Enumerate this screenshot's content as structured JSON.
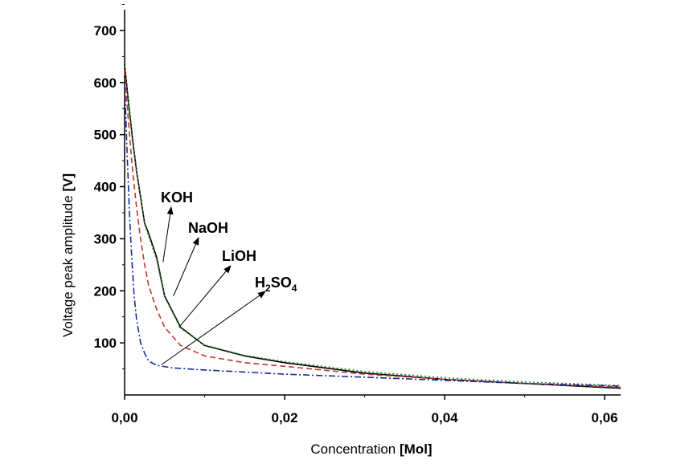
{
  "chart_data": {
    "type": "line",
    "title": "",
    "xlabel_prefix": "Concentration ",
    "xlabel_unit": "[Mol]",
    "ylabel_prefix": "Voltage peak amplitude ",
    "ylabel_unit": "[V]",
    "xlim": [
      0,
      0.062
    ],
    "ylim": [
      0,
      740
    ],
    "x_ticks": [
      0,
      0.02,
      0.04,
      0.06
    ],
    "x_tick_labels": [
      "0,00",
      "0,02",
      "0,04",
      "0,06"
    ],
    "y_ticks": [
      100,
      200,
      300,
      400,
      500,
      600,
      700
    ],
    "y_tick_labels": [
      "100",
      "200",
      "300",
      "400",
      "500",
      "600",
      "700"
    ],
    "grid": false,
    "series": [
      {
        "name": "KOH",
        "color": "#000000",
        "dash": "solid",
        "x": [
          0,
          0.0005,
          0.001,
          0.0015,
          0.002,
          0.0025,
          0.003,
          0.004,
          0.005,
          0.007,
          0.01,
          0.015,
          0.02,
          0.03,
          0.04,
          0.05,
          0.062
        ],
        "y": [
          635,
          560,
          490,
          430,
          380,
          330,
          310,
          265,
          190,
          130,
          95,
          75,
          62,
          42,
          30,
          22,
          13
        ]
      },
      {
        "name": "NaOH",
        "color": "#2e8b2e",
        "dash": "dotted",
        "x": [
          0,
          0.0005,
          0.001,
          0.0015,
          0.002,
          0.0025,
          0.003,
          0.004,
          0.005,
          0.007,
          0.01,
          0.015,
          0.02,
          0.03,
          0.04,
          0.05,
          0.062
        ],
        "y": [
          632,
          555,
          485,
          428,
          378,
          328,
          305,
          260,
          188,
          128,
          96,
          76,
          64,
          45,
          33,
          25,
          18
        ]
      },
      {
        "name": "LiOH",
        "color": "#c0392b",
        "dash": "dashed",
        "x": [
          0,
          0.0005,
          0.001,
          0.0015,
          0.002,
          0.0025,
          0.003,
          0.004,
          0.005,
          0.007,
          0.01,
          0.015,
          0.02,
          0.03,
          0.04,
          0.05,
          0.062
        ],
        "y": [
          625,
          520,
          430,
          360,
          300,
          250,
          210,
          165,
          130,
          95,
          75,
          62,
          55,
          40,
          30,
          22,
          15
        ]
      },
      {
        "name": "H2SO4",
        "color": "#1a2a9c",
        "dash": "dashdot",
        "x": [
          0,
          0.0003,
          0.0006,
          0.0009,
          0.0012,
          0.0015,
          0.002,
          0.0025,
          0.003,
          0.004,
          0.006,
          0.01,
          0.02,
          0.03,
          0.04,
          0.05,
          0.062
        ],
        "y": [
          600,
          470,
          350,
          260,
          190,
          145,
          100,
          80,
          65,
          57,
          52,
          48,
          40,
          34,
          28,
          22,
          17
        ]
      }
    ],
    "annotations": [
      {
        "text_main": "KOH",
        "text_sub": "",
        "text_main2": "",
        "text_sub2": "",
        "point_x": 0.0048,
        "point_y": 255
      },
      {
        "text_main": "NaOH",
        "text_sub": "",
        "text_main2": "",
        "text_sub2": "",
        "point_x": 0.0061,
        "point_y": 190
      },
      {
        "text_main": "LiOH",
        "text_sub": "",
        "text_main2": "",
        "text_sub2": "",
        "point_x": 0.0068,
        "point_y": 130
      },
      {
        "text_main": "H",
        "text_sub": "2",
        "text_main2": "SO",
        "text_sub2": "4",
        "point_x": 0.0046,
        "point_y": 58
      }
    ]
  }
}
